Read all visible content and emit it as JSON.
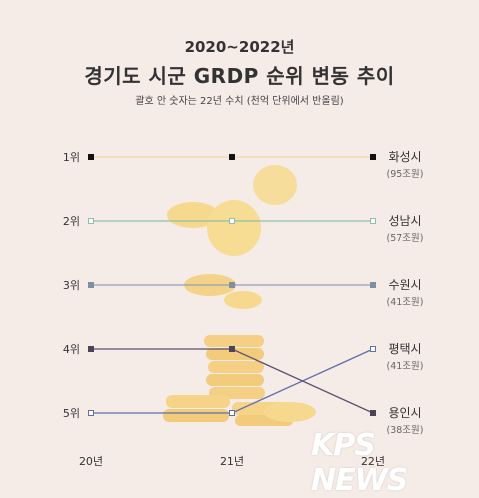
{
  "header": {
    "title_line1": "2020~2022년",
    "title_line2": "경기도 시군 GRDP 순위 변동 추이",
    "subtitle": "괄호 안 숫자는 22년 수치 (천억 단위에서 반올림)"
  },
  "watermark": "KPS NEWS",
  "chart_data": {
    "type": "line",
    "x": [
      "20년",
      "21년",
      "22년"
    ],
    "y_ticks": [
      "1위",
      "2위",
      "3위",
      "4위",
      "5위"
    ],
    "ylim": [
      1,
      5
    ],
    "y_inverted": true,
    "series": [
      {
        "name": "화성시",
        "value_label": "(95조원)",
        "ranks": [
          1,
          1,
          1
        ],
        "color": "#f0d9a6",
        "marker": "#111111",
        "marker_style": "filled"
      },
      {
        "name": "성남시",
        "value_label": "(57조원)",
        "ranks": [
          2,
          2,
          2
        ],
        "color": "#8fbfa9",
        "marker": "#ffffff",
        "marker_style": "hollow"
      },
      {
        "name": "수원시",
        "value_label": "(41조원)",
        "ranks": [
          3,
          3,
          3
        ],
        "color": "#8fa3b5",
        "marker": "#7f8fa0",
        "marker_style": "filled"
      },
      {
        "name": "평택시",
        "value_label": "(41조원)",
        "ranks": [
          5,
          5,
          4
        ],
        "color": "#5f6fa8",
        "marker": "#ffffff",
        "marker_style": "hollow"
      },
      {
        "name": "용인시",
        "value_label": "(38조원)",
        "ranks": [
          4,
          4,
          5
        ],
        "color": "#5b5070",
        "marker": "#4a4458",
        "marker_style": "filled"
      }
    ]
  }
}
